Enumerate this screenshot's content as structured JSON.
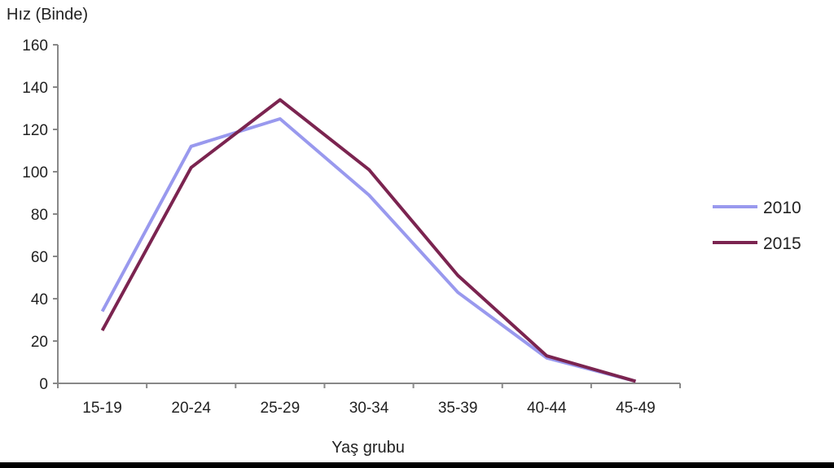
{
  "chart_data": {
    "type": "line",
    "ylabel": "Hız (Binde)",
    "xlabel": "Yaş grubu",
    "categories": [
      "15-19",
      "20-24",
      "25-29",
      "30-34",
      "35-39",
      "40-44",
      "45-49"
    ],
    "ylim": [
      0,
      160
    ],
    "yticks": [
      0,
      20,
      40,
      60,
      80,
      100,
      120,
      140,
      160
    ],
    "grid": false,
    "legend_position": "right",
    "series": [
      {
        "name": "2010",
        "color": "#9999ee",
        "values": [
          34,
          112,
          125,
          89,
          43,
          12,
          1
        ]
      },
      {
        "name": "2015",
        "color": "#7b2450",
        "values": [
          25,
          102,
          134,
          101,
          51,
          13,
          1
        ]
      }
    ]
  }
}
